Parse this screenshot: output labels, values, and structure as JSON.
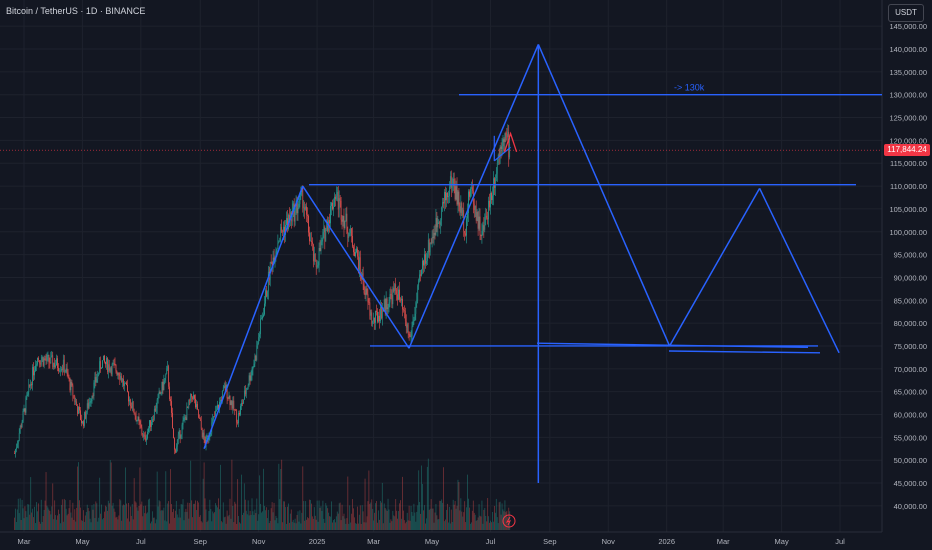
{
  "header": {
    "symbol_title": "Bitcoin / TetherUS · 1D · BINANCE",
    "currency": "USDT"
  },
  "last_price_label": "117,844.24",
  "chart_data": {
    "type": "candlestick",
    "x_tick_labels": [
      "Mar",
      "May",
      "Jul",
      "Sep",
      "Nov",
      "2025",
      "Mar",
      "May",
      "Jul",
      "Sep",
      "Nov",
      "2026",
      "Mar",
      "May",
      "Jul"
    ],
    "y_tick_labels": [
      "40,000.00",
      "45,000.00",
      "50,000.00",
      "55,000.00",
      "60,000.00",
      "65,000.00",
      "70,000.00",
      "75,000.00",
      "80,000.00",
      "85,000.00",
      "90,000.00",
      "95,000.00",
      "100,000.00",
      "105,000.00",
      "110,000.00",
      "115,000.00",
      "120,000.00",
      "125,000.00",
      "130,000.00",
      "135,000.00",
      "140,000.00",
      "145,000.00"
    ],
    "ylim": [
      37000,
      148000
    ],
    "last_price": 117844.24,
    "annotations": [
      {
        "text": "-> 130k",
        "price": 130000
      }
    ],
    "horizontal_levels": [
      130000,
      110300,
      75000
    ],
    "drawings": [
      {
        "name": "uptrend-line-1",
        "points": [
          [
            "2024-09-05",
            52500
          ],
          [
            "2024-12-17",
            110000
          ]
        ]
      },
      {
        "name": "downtrend-line-1",
        "points": [
          [
            "2024-12-17",
            110000
          ],
          [
            "2025-04-07",
            74500
          ]
        ]
      },
      {
        "name": "uptrend-line-2",
        "points": [
          [
            "2025-04-07",
            74500
          ],
          [
            "2025-08-20",
            141000
          ]
        ]
      },
      {
        "name": "projection-drop",
        "points": [
          [
            "2025-08-20",
            141000
          ],
          [
            "2026-01-04",
            75000
          ]
        ]
      },
      {
        "name": "projection-rise",
        "points": [
          [
            "2026-01-04",
            75000
          ],
          [
            "2026-04-08",
            109500
          ]
        ]
      },
      {
        "name": "projection-drop-2",
        "points": [
          [
            "2026-04-08",
            109500
          ],
          [
            "2026-06-30",
            73500
          ]
        ]
      },
      {
        "name": "vertical-marker",
        "points": [
          [
            "2025-08-20",
            141000
          ],
          [
            "2025-08-20",
            45000
          ]
        ]
      }
    ],
    "price_anchors": [
      [
        "2024-02-20",
        51500
      ],
      [
        "2024-03-14",
        72500
      ],
      [
        "2024-04-12",
        70500
      ],
      [
        "2024-05-01",
        58000
      ],
      [
        "2024-05-21",
        71500
      ],
      [
        "2024-06-08",
        69500
      ],
      [
        "2024-07-05",
        54500
      ],
      [
        "2024-07-29",
        69500
      ],
      [
        "2024-08-05",
        52000
      ],
      [
        "2024-08-24",
        64500
      ],
      [
        "2024-09-06",
        53500
      ],
      [
        "2024-09-27",
        66000
      ],
      [
        "2024-10-10",
        59000
      ],
      [
        "2024-10-29",
        73000
      ],
      [
        "2024-11-13",
        92000
      ],
      [
        "2024-11-22",
        99000
      ],
      [
        "2024-12-17",
        107500
      ],
      [
        "2024-12-30",
        92000
      ],
      [
        "2025-01-20",
        108500
      ],
      [
        "2025-02-10",
        96000
      ],
      [
        "2025-02-28",
        80000
      ],
      [
        "2025-03-25",
        87500
      ],
      [
        "2025-04-08",
        76500
      ],
      [
        "2025-04-22",
        93500
      ],
      [
        "2025-05-22",
        111500
      ],
      [
        "2025-06-05",
        101000
      ],
      [
        "2025-06-10",
        110000
      ],
      [
        "2025-06-22",
        99000
      ],
      [
        "2025-07-03",
        109500
      ],
      [
        "2025-07-14",
        122000
      ],
      [
        "2025-07-22",
        117844
      ]
    ]
  }
}
